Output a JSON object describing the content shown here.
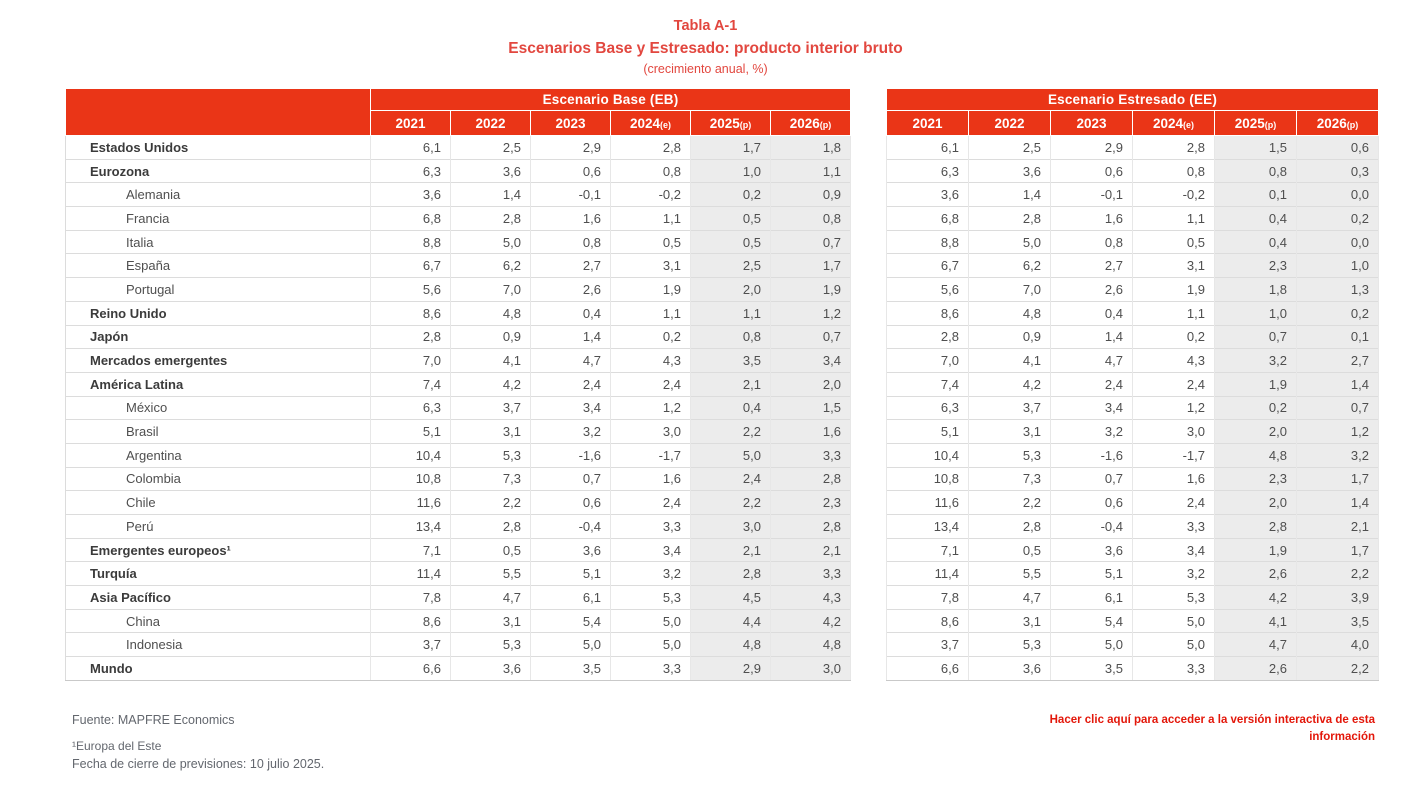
{
  "title": {
    "line1": "Tabla A-1",
    "line2": "Escenarios Base y Estresado: producto interior bruto",
    "line3": "(crecimiento anual, %)"
  },
  "colors": {
    "header_red": "#EA3517",
    "title_red": "#E2473F",
    "link_red": "#E3170A",
    "shaded_column_bg": "#ECECEC"
  },
  "table": {
    "left_group_header": "Escenario Base (EB)",
    "right_group_header": "Escenario Estresado (EE)",
    "years": [
      {
        "label": "2021",
        "suffix": ""
      },
      {
        "label": "2022",
        "suffix": ""
      },
      {
        "label": "2023",
        "suffix": ""
      },
      {
        "label": "2024",
        "suffix": "(e)"
      },
      {
        "label": "2025",
        "suffix": "(p)"
      },
      {
        "label": "2026",
        "suffix": "(p)"
      }
    ],
    "rows": [
      {
        "label": "Estados Unidos",
        "indent": false,
        "eb": [
          "6,1",
          "2,5",
          "2,9",
          "2,8",
          "1,7",
          "1,8"
        ],
        "ee": [
          "6,1",
          "2,5",
          "2,9",
          "2,8",
          "1,5",
          "0,6"
        ]
      },
      {
        "label": "Eurozona",
        "indent": false,
        "eb": [
          "6,3",
          "3,6",
          "0,6",
          "0,8",
          "1,0",
          "1,1"
        ],
        "ee": [
          "6,3",
          "3,6",
          "0,6",
          "0,8",
          "0,8",
          "0,3"
        ]
      },
      {
        "label": "Alemania",
        "indent": true,
        "eb": [
          "3,6",
          "1,4",
          "-0,1",
          "-0,2",
          "0,2",
          "0,9"
        ],
        "ee": [
          "3,6",
          "1,4",
          "-0,1",
          "-0,2",
          "0,1",
          "0,0"
        ]
      },
      {
        "label": "Francia",
        "indent": true,
        "eb": [
          "6,8",
          "2,8",
          "1,6",
          "1,1",
          "0,5",
          "0,8"
        ],
        "ee": [
          "6,8",
          "2,8",
          "1,6",
          "1,1",
          "0,4",
          "0,2"
        ]
      },
      {
        "label": "Italia",
        "indent": true,
        "eb": [
          "8,8",
          "5,0",
          "0,8",
          "0,5",
          "0,5",
          "0,7"
        ],
        "ee": [
          "8,8",
          "5,0",
          "0,8",
          "0,5",
          "0,4",
          "0,0"
        ]
      },
      {
        "label": "España",
        "indent": true,
        "eb": [
          "6,7",
          "6,2",
          "2,7",
          "3,1",
          "2,5",
          "1,7"
        ],
        "ee": [
          "6,7",
          "6,2",
          "2,7",
          "3,1",
          "2,3",
          "1,0"
        ]
      },
      {
        "label": "Portugal",
        "indent": true,
        "eb": [
          "5,6",
          "7,0",
          "2,6",
          "1,9",
          "2,0",
          "1,9"
        ],
        "ee": [
          "5,6",
          "7,0",
          "2,6",
          "1,9",
          "1,8",
          "1,3"
        ]
      },
      {
        "label": "Reino Unido",
        "indent": false,
        "eb": [
          "8,6",
          "4,8",
          "0,4",
          "1,1",
          "1,1",
          "1,2"
        ],
        "ee": [
          "8,6",
          "4,8",
          "0,4",
          "1,1",
          "1,0",
          "0,2"
        ]
      },
      {
        "label": "Japón",
        "indent": false,
        "eb": [
          "2,8",
          "0,9",
          "1,4",
          "0,2",
          "0,8",
          "0,7"
        ],
        "ee": [
          "2,8",
          "0,9",
          "1,4",
          "0,2",
          "0,7",
          "0,1"
        ]
      },
      {
        "label": "Mercados emergentes",
        "indent": false,
        "eb": [
          "7,0",
          "4,1",
          "4,7",
          "4,3",
          "3,5",
          "3,4"
        ],
        "ee": [
          "7,0",
          "4,1",
          "4,7",
          "4,3",
          "3,2",
          "2,7"
        ]
      },
      {
        "label": "América Latina",
        "indent": false,
        "eb": [
          "7,4",
          "4,2",
          "2,4",
          "2,4",
          "2,1",
          "2,0"
        ],
        "ee": [
          "7,4",
          "4,2",
          "2,4",
          "2,4",
          "1,9",
          "1,4"
        ]
      },
      {
        "label": "México",
        "indent": true,
        "eb": [
          "6,3",
          "3,7",
          "3,4",
          "1,2",
          "0,4",
          "1,5"
        ],
        "ee": [
          "6,3",
          "3,7",
          "3,4",
          "1,2",
          "0,2",
          "0,7"
        ]
      },
      {
        "label": "Brasil",
        "indent": true,
        "eb": [
          "5,1",
          "3,1",
          "3,2",
          "3,0",
          "2,2",
          "1,6"
        ],
        "ee": [
          "5,1",
          "3,1",
          "3,2",
          "3,0",
          "2,0",
          "1,2"
        ]
      },
      {
        "label": "Argentina",
        "indent": true,
        "eb": [
          "10,4",
          "5,3",
          "-1,6",
          "-1,7",
          "5,0",
          "3,3"
        ],
        "ee": [
          "10,4",
          "5,3",
          "-1,6",
          "-1,7",
          "4,8",
          "3,2"
        ]
      },
      {
        "label": "Colombia",
        "indent": true,
        "eb": [
          "10,8",
          "7,3",
          "0,7",
          "1,6",
          "2,4",
          "2,8"
        ],
        "ee": [
          "10,8",
          "7,3",
          "0,7",
          "1,6",
          "2,3",
          "1,7"
        ]
      },
      {
        "label": "Chile",
        "indent": true,
        "eb": [
          "11,6",
          "2,2",
          "0,6",
          "2,4",
          "2,2",
          "2,3"
        ],
        "ee": [
          "11,6",
          "2,2",
          "0,6",
          "2,4",
          "2,0",
          "1,4"
        ]
      },
      {
        "label": "Perú",
        "indent": true,
        "eb": [
          "13,4",
          "2,8",
          "-0,4",
          "3,3",
          "3,0",
          "2,8"
        ],
        "ee": [
          "13,4",
          "2,8",
          "-0,4",
          "3,3",
          "2,8",
          "2,1"
        ]
      },
      {
        "label": "Emergentes europeos¹",
        "indent": false,
        "eb": [
          "7,1",
          "0,5",
          "3,6",
          "3,4",
          "2,1",
          "2,1"
        ],
        "ee": [
          "7,1",
          "0,5",
          "3,6",
          "3,4",
          "1,9",
          "1,7"
        ]
      },
      {
        "label": "Turquía",
        "indent": false,
        "eb": [
          "11,4",
          "5,5",
          "5,1",
          "3,2",
          "2,8",
          "3,3"
        ],
        "ee": [
          "11,4",
          "5,5",
          "5,1",
          "3,2",
          "2,6",
          "2,2"
        ]
      },
      {
        "label": "Asia Pacífico",
        "indent": false,
        "eb": [
          "7,8",
          "4,7",
          "6,1",
          "5,3",
          "4,5",
          "4,3"
        ],
        "ee": [
          "7,8",
          "4,7",
          "6,1",
          "5,3",
          "4,2",
          "3,9"
        ]
      },
      {
        "label": "China",
        "indent": true,
        "eb": [
          "8,6",
          "3,1",
          "5,4",
          "5,0",
          "4,4",
          "4,2"
        ],
        "ee": [
          "8,6",
          "3,1",
          "5,4",
          "5,0",
          "4,1",
          "3,5"
        ]
      },
      {
        "label": "Indonesia",
        "indent": true,
        "eb": [
          "3,7",
          "5,3",
          "5,0",
          "5,0",
          "4,8",
          "4,8"
        ],
        "ee": [
          "3,7",
          "5,3",
          "5,0",
          "5,0",
          "4,7",
          "4,0"
        ]
      },
      {
        "label": "Mundo",
        "indent": false,
        "eb": [
          "6,6",
          "3,6",
          "3,5",
          "3,3",
          "2,9",
          "3,0"
        ],
        "ee": [
          "6,6",
          "3,6",
          "3,5",
          "3,3",
          "2,6",
          "2,2"
        ]
      }
    ]
  },
  "footer": {
    "source": "Fuente: MAPFRE Economics",
    "footnote1": "¹Europa del Este",
    "footnote2": "Fecha de cierre de previsiones: 10 julio 2025.",
    "interactive_link": "Hacer clic aquí para acceder a la versión interactiva de esta información"
  }
}
